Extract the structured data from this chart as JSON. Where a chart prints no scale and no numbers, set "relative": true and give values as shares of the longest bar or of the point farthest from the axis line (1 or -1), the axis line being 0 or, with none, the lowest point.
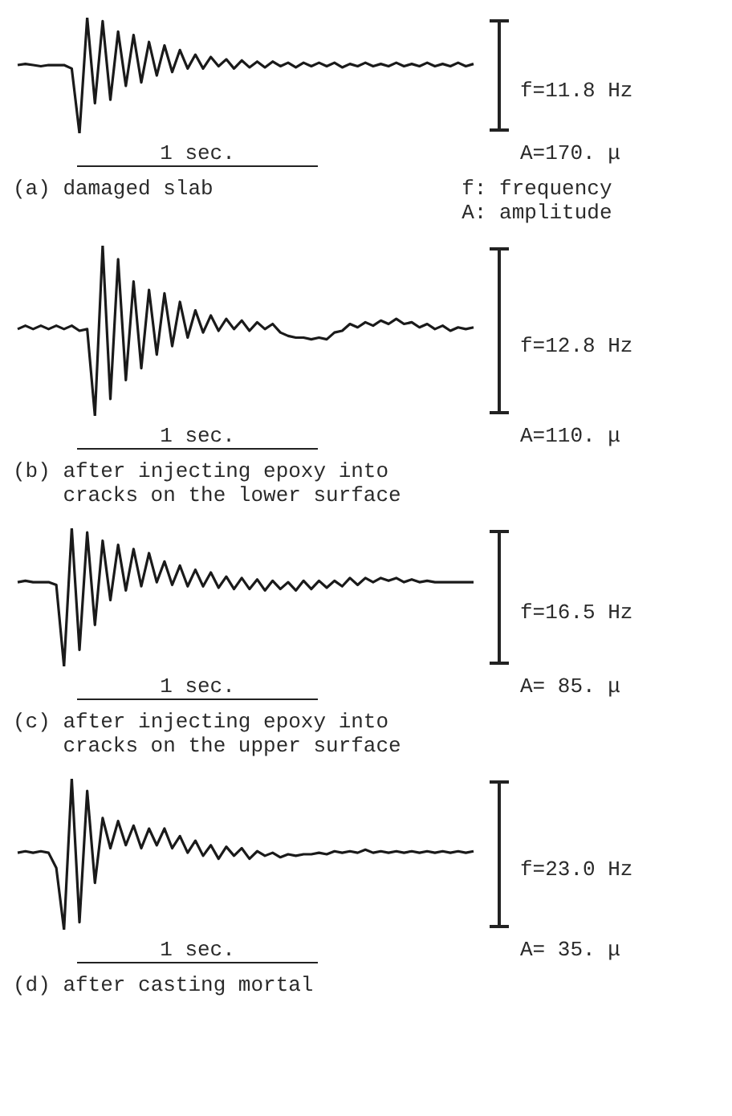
{
  "chart_data": [
    {
      "type": "line",
      "title": "(a)  damaged slab",
      "relative": true,
      "color": "#1a1a1a",
      "marker": "none",
      "grid": false,
      "tick_labels": false,
      "annotations": [
        "1 sec.",
        "f=11.8 Hz",
        "A=170. μ",
        "f: frequency",
        "A: amplitude"
      ],
      "categories": [
        null,
        null,
        null,
        null,
        null,
        null,
        null,
        null,
        null,
        null,
        null,
        null,
        null,
        null,
        null,
        null,
        null,
        null,
        null,
        null,
        null,
        null,
        null,
        null,
        null,
        null,
        null,
        null,
        null,
        null,
        null,
        null,
        null,
        null,
        null,
        null,
        null,
        null,
        null,
        null,
        null,
        null,
        null,
        null,
        null,
        null,
        null,
        null,
        null,
        null,
        null,
        null,
        null,
        null,
        null,
        null,
        null,
        null,
        null,
        null
      ],
      "values": [
        0.59,
        0.6,
        0.59,
        0.58,
        0.59,
        0.59,
        0.59,
        0.56,
        0,
        1,
        0.26,
        0.97,
        0.29,
        0.88,
        0.41,
        0.85,
        0.44,
        0.79,
        0.5,
        0.76,
        0.53,
        0.72,
        0.56,
        0.68,
        0.56,
        0.66,
        0.58,
        0.64,
        0.56,
        0.63,
        0.57,
        0.62,
        0.57,
        0.62,
        0.58,
        0.61,
        0.57,
        0.61,
        0.58,
        0.61,
        0.58,
        0.61,
        0.57,
        0.6,
        0.58,
        0.61,
        0.58,
        0.6,
        0.58,
        0.61,
        0.58,
        0.6,
        0.58,
        0.61,
        0.58,
        0.6,
        0.58,
        0.61,
        0.58,
        0.6
      ]
    },
    {
      "type": "line",
      "title": "(b) after injecting epoxy into cracks on the lower surface",
      "relative": true,
      "color": "#1a1a1a",
      "marker": "none",
      "grid": false,
      "tick_labels": false,
      "annotations": [
        "1 sec.",
        "f=12.8 Hz",
        "A=110. μ"
      ],
      "categories": [
        null,
        null,
        null,
        null,
        null,
        null,
        null,
        null,
        null,
        null,
        null,
        null,
        null,
        null,
        null,
        null,
        null,
        null,
        null,
        null,
        null,
        null,
        null,
        null,
        null,
        null,
        null,
        null,
        null,
        null,
        null,
        null,
        null,
        null,
        null,
        null,
        null,
        null,
        null,
        null,
        null,
        null,
        null,
        null,
        null,
        null,
        null,
        null,
        null,
        null,
        null,
        null,
        null,
        null,
        null,
        null,
        null,
        null,
        null,
        null
      ],
      "values": [
        0.51,
        0.53,
        0.51,
        0.53,
        0.51,
        0.53,
        0.51,
        0.53,
        0.5,
        0.51,
        0,
        1,
        0.1,
        0.92,
        0.21,
        0.79,
        0.28,
        0.74,
        0.36,
        0.72,
        0.41,
        0.67,
        0.46,
        0.62,
        0.49,
        0.59,
        0.5,
        0.57,
        0.51,
        0.56,
        0.5,
        0.55,
        0.51,
        0.54,
        0.49,
        0.47,
        0.46,
        0.46,
        0.45,
        0.46,
        0.45,
        0.49,
        0.5,
        0.54,
        0.52,
        0.55,
        0.53,
        0.56,
        0.54,
        0.57,
        0.54,
        0.55,
        0.52,
        0.54,
        0.51,
        0.53,
        0.5,
        0.52,
        0.51,
        0.52
      ]
    },
    {
      "type": "line",
      "title": "(c) after injecting epoxy into cracks on the upper surface",
      "relative": true,
      "color": "#1a1a1a",
      "marker": "none",
      "grid": false,
      "tick_labels": false,
      "annotations": [
        "1 sec.",
        "f=16.5 Hz",
        "A= 85. μ"
      ],
      "categories": [
        null,
        null,
        null,
        null,
        null,
        null,
        null,
        null,
        null,
        null,
        null,
        null,
        null,
        null,
        null,
        null,
        null,
        null,
        null,
        null,
        null,
        null,
        null,
        null,
        null,
        null,
        null,
        null,
        null,
        null,
        null,
        null,
        null,
        null,
        null,
        null,
        null,
        null,
        null,
        null,
        null,
        null,
        null,
        null,
        null,
        null,
        null,
        null,
        null,
        null,
        null,
        null,
        null,
        null,
        null,
        null,
        null,
        null,
        null,
        null
      ],
      "values": [
        0.61,
        0.62,
        0.61,
        0.61,
        0.61,
        0.59,
        0,
        1,
        0.12,
        0.97,
        0.3,
        0.91,
        0.48,
        0.88,
        0.55,
        0.85,
        0.58,
        0.82,
        0.61,
        0.76,
        0.59,
        0.73,
        0.58,
        0.7,
        0.58,
        0.68,
        0.57,
        0.65,
        0.56,
        0.64,
        0.56,
        0.63,
        0.55,
        0.62,
        0.56,
        0.61,
        0.55,
        0.62,
        0.56,
        0.62,
        0.57,
        0.62,
        0.58,
        0.64,
        0.59,
        0.64,
        0.61,
        0.64,
        0.62,
        0.64,
        0.61,
        0.63,
        0.61,
        0.62,
        0.61,
        0.61,
        0.61,
        0.61,
        0.61,
        0.61
      ]
    },
    {
      "type": "line",
      "title": "(d) after casting mortal",
      "relative": true,
      "color": "#1a1a1a",
      "marker": "none",
      "grid": false,
      "tick_labels": false,
      "annotations": [
        "1 sec.",
        "f=23.0 Hz",
        "A= 35. μ"
      ],
      "categories": [
        null,
        null,
        null,
        null,
        null,
        null,
        null,
        null,
        null,
        null,
        null,
        null,
        null,
        null,
        null,
        null,
        null,
        null,
        null,
        null,
        null,
        null,
        null,
        null,
        null,
        null,
        null,
        null,
        null,
        null,
        null,
        null,
        null,
        null,
        null,
        null,
        null,
        null,
        null,
        null,
        null,
        null,
        null,
        null,
        null,
        null,
        null,
        null,
        null,
        null,
        null,
        null,
        null,
        null,
        null,
        null,
        null,
        null,
        null,
        null
      ],
      "values": [
        0.51,
        0.52,
        0.51,
        0.52,
        0.51,
        0.41,
        0,
        1,
        0.05,
        0.92,
        0.31,
        0.74,
        0.54,
        0.72,
        0.56,
        0.69,
        0.54,
        0.67,
        0.56,
        0.67,
        0.54,
        0.62,
        0.51,
        0.59,
        0.49,
        0.56,
        0.47,
        0.55,
        0.49,
        0.54,
        0.47,
        0.52,
        0.49,
        0.51,
        0.48,
        0.5,
        0.49,
        0.5,
        0.5,
        0.51,
        0.5,
        0.52,
        0.51,
        0.52,
        0.51,
        0.53,
        0.51,
        0.52,
        0.51,
        0.52,
        0.51,
        0.52,
        0.51,
        0.52,
        0.51,
        0.52,
        0.51,
        0.52,
        0.51,
        0.52
      ]
    }
  ]
}
